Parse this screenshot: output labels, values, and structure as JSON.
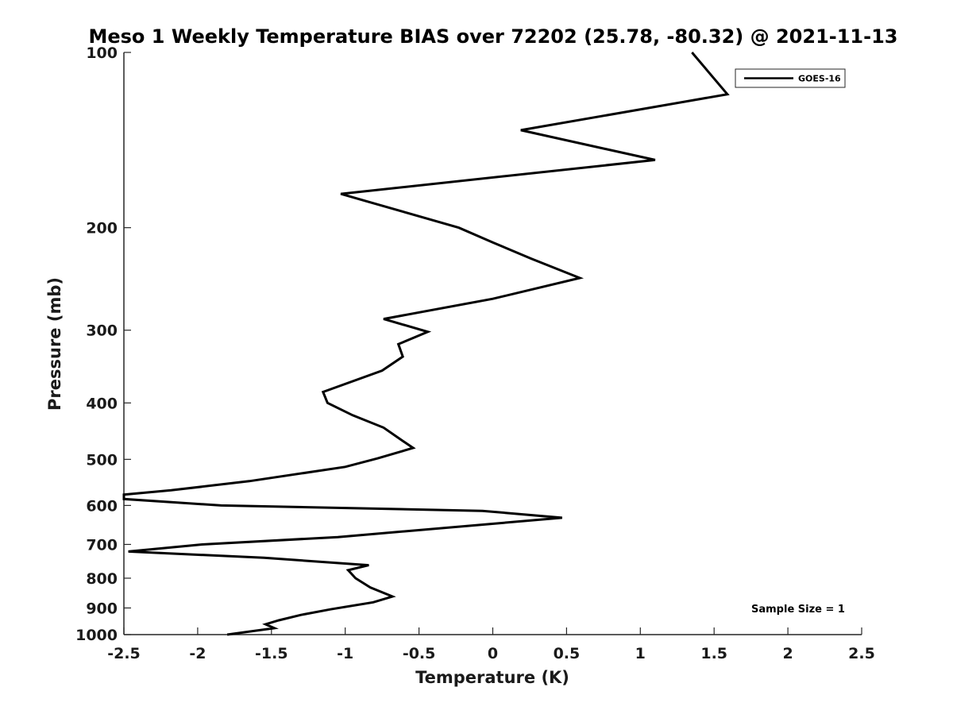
{
  "chart_data": {
    "type": "line",
    "title": "Meso 1 Weekly Temperature BIAS over 72202 (25.78, -80.32) @ 2021-11-13",
    "xlabel": "Temperature (K)",
    "ylabel": "Pressure (mb)",
    "xlim": [
      -2.5,
      2.5
    ],
    "ylim": [
      100,
      1000
    ],
    "y_scale": "log",
    "y_reversed": true,
    "grid": false,
    "x_ticks": [
      -2.5,
      -2,
      -1.5,
      -1,
      -0.5,
      0,
      0.5,
      1,
      1.5,
      2,
      2.5
    ],
    "x_tick_labels": [
      "-2.5",
      "-2",
      "-1.5",
      "-1",
      "-0.5",
      "0",
      "0.5",
      "1",
      "1.5",
      "2",
      "2.5"
    ],
    "y_ticks": [
      100,
      200,
      300,
      400,
      500,
      600,
      700,
      800,
      900,
      1000
    ],
    "y_tick_labels": [
      "100",
      "200",
      "300",
      "400",
      "500",
      "600",
      "700",
      "800",
      "900",
      "1000"
    ],
    "legend": {
      "placement": "top-right",
      "entries": [
        "GOES-16"
      ]
    },
    "annotation": "Sample Size = 1",
    "series": [
      {
        "name": "GOES-16",
        "color": "#000000",
        "points": [
          {
            "x": 1.35,
            "p": 100
          },
          {
            "x": 1.59,
            "p": 118
          },
          {
            "x": 0.19,
            "p": 136
          },
          {
            "x": 1.1,
            "p": 153
          },
          {
            "x": -1.03,
            "p": 175
          },
          {
            "x": -0.23,
            "p": 200
          },
          {
            "x": 0.0,
            "p": 212
          },
          {
            "x": 0.26,
            "p": 226
          },
          {
            "x": 0.59,
            "p": 244
          },
          {
            "x": 0.0,
            "p": 265
          },
          {
            "x": -0.74,
            "p": 287
          },
          {
            "x": -0.44,
            "p": 302
          },
          {
            "x": -0.64,
            "p": 317
          },
          {
            "x": -0.61,
            "p": 333
          },
          {
            "x": -0.75,
            "p": 352
          },
          {
            "x": -1.15,
            "p": 383
          },
          {
            "x": -1.12,
            "p": 400
          },
          {
            "x": -0.95,
            "p": 420
          },
          {
            "x": -0.74,
            "p": 441
          },
          {
            "x": -0.62,
            "p": 463
          },
          {
            "x": -0.54,
            "p": 478
          },
          {
            "x": -0.78,
            "p": 498
          },
          {
            "x": -1.0,
            "p": 515
          },
          {
            "x": -1.65,
            "p": 545
          },
          {
            "x": -2.18,
            "p": 565
          },
          {
            "x": -2.5,
            "p": 575
          },
          {
            "x": -2.5,
            "p": 585
          },
          {
            "x": -1.84,
            "p": 600
          },
          {
            "x": -0.07,
            "p": 613
          },
          {
            "x": 0.47,
            "p": 630
          },
          {
            "x": -1.05,
            "p": 680
          },
          {
            "x": -1.97,
            "p": 700
          },
          {
            "x": -2.47,
            "p": 720
          },
          {
            "x": -1.55,
            "p": 738
          },
          {
            "x": -0.84,
            "p": 760
          },
          {
            "x": -0.98,
            "p": 775
          },
          {
            "x": -0.93,
            "p": 800
          },
          {
            "x": -0.83,
            "p": 830
          },
          {
            "x": -0.68,
            "p": 860
          },
          {
            "x": -0.81,
            "p": 880
          },
          {
            "x": -1.1,
            "p": 905
          },
          {
            "x": -1.3,
            "p": 925
          },
          {
            "x": -1.45,
            "p": 945
          },
          {
            "x": -1.54,
            "p": 960
          },
          {
            "x": -1.48,
            "p": 975
          },
          {
            "x": -1.8,
            "p": 1000
          }
        ]
      }
    ]
  }
}
